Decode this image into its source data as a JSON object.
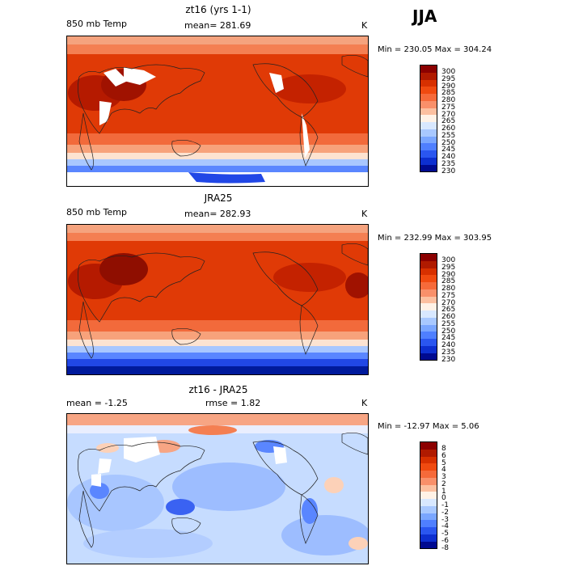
{
  "season": "JJA",
  "panels": [
    {
      "title": "zt16 (yrs 1-1)",
      "left_label": "850 mb Temp",
      "center_label": "mean= 281.69",
      "unit": "K",
      "minmax": "Min = 230.05 Max = 304.24",
      "colorbar_labels": [
        "300",
        "295",
        "290",
        "285",
        "280",
        "275",
        "270",
        "265",
        "260",
        "255",
        "250",
        "245",
        "240",
        "235",
        "230"
      ],
      "colors": [
        "#8b0000",
        "#b01a00",
        "#d73000",
        "#f04a10",
        "#f66a3a",
        "#f9906a",
        "#fcc0a0",
        "#fff2e6",
        "#d8e8ff",
        "#a8c8ff",
        "#7aa6ff",
        "#4f7fff",
        "#2a56f0",
        "#0d2fd0",
        "#000a90"
      ]
    },
    {
      "title": "JRA25",
      "left_label": "850 mb Temp",
      "center_label": "mean= 282.93",
      "unit": "K",
      "minmax": "Min = 232.99 Max = 303.95",
      "colorbar_labels": [
        "300",
        "295",
        "290",
        "285",
        "280",
        "275",
        "270",
        "265",
        "260",
        "255",
        "250",
        "245",
        "240",
        "235",
        "230"
      ],
      "colors": [
        "#8b0000",
        "#b01a00",
        "#d73000",
        "#f04a10",
        "#f66a3a",
        "#f9906a",
        "#fcc0a0",
        "#fff2e6",
        "#d8e8ff",
        "#a8c8ff",
        "#7aa6ff",
        "#4f7fff",
        "#2a56f0",
        "#0d2fd0",
        "#000a90"
      ]
    },
    {
      "title": "zt16 - JRA25",
      "left_label": "mean =  -1.25",
      "center_label": "rmse =   1.82",
      "unit": "K",
      "minmax": "Min = -12.97 Max =   5.06",
      "colorbar_labels": [
        "8",
        "6",
        "5",
        "4",
        "3",
        "2",
        "1",
        "0",
        "-1",
        "-2",
        "-3",
        "-4",
        "-5",
        "-6",
        "-8"
      ],
      "colors": [
        "#8b0000",
        "#b01a00",
        "#d73000",
        "#f04a10",
        "#f66a3a",
        "#f9906a",
        "#fcc0a0",
        "#fff2e6",
        "#d8e8ff",
        "#a8c8ff",
        "#7aa6ff",
        "#4f7fff",
        "#2a56f0",
        "#0d2fd0",
        "#000a90"
      ]
    }
  ]
}
